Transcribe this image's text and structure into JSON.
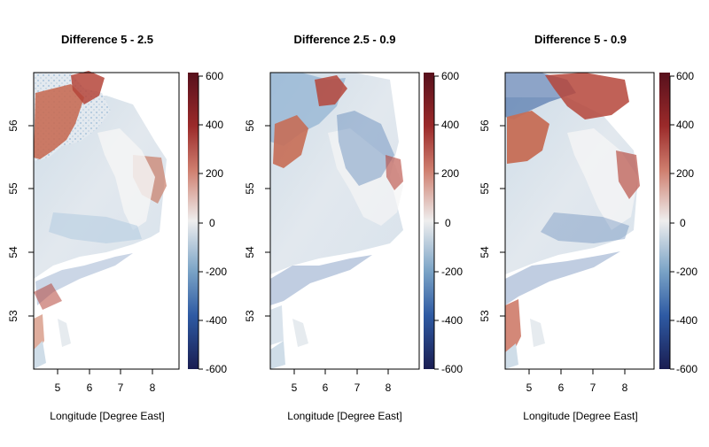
{
  "figure": {
    "xlabel": "Longitude [Degree East]",
    "colorbar_ticks": [
      "600",
      "400",
      "200",
      "0",
      "-200",
      "-400",
      "-600"
    ]
  },
  "chart_data": [
    {
      "type": "heatmap",
      "title": "Difference 5 - 2.5",
      "xlabel": "Longitude [Degree East]",
      "ylabel": "",
      "xlim": [
        4.3,
        9.0
      ],
      "ylim": [
        52.2,
        56.75
      ],
      "x_ticks": [
        "5",
        "6",
        "7",
        "8"
      ],
      "y_ticks": [
        "53",
        "54",
        "55",
        "56"
      ],
      "colorbar": {
        "range": [
          -600,
          600
        ],
        "ticks": [
          600,
          400,
          200,
          0,
          -200,
          -400,
          -600
        ]
      },
      "colors": {
        "low": "#1a1e52",
        "mid": "#eeeeee",
        "high": "#57101c"
      }
    },
    {
      "type": "heatmap",
      "title": "Difference 2.5 - 0.9",
      "xlabel": "Longitude [Degree East]",
      "ylabel": "",
      "xlim": [
        4.3,
        9.0
      ],
      "ylim": [
        52.2,
        56.75
      ],
      "x_ticks": [
        "5",
        "6",
        "7",
        "8"
      ],
      "y_ticks": [
        "53",
        "54",
        "55",
        "56"
      ],
      "colorbar": {
        "range": [
          -600,
          600
        ],
        "ticks": [
          600,
          400,
          200,
          0,
          -200,
          -400,
          -600
        ]
      },
      "colors": {
        "low": "#1a1e52",
        "mid": "#eeeeee",
        "high": "#57101c"
      }
    },
    {
      "type": "heatmap",
      "title": "Difference 5 - 0.9",
      "xlabel": "Longitude [Degree East]",
      "ylabel": "",
      "xlim": [
        4.3,
        9.0
      ],
      "ylim": [
        52.2,
        56.75
      ],
      "x_ticks": [
        "5",
        "6",
        "7",
        "8"
      ],
      "y_ticks": [
        "53",
        "54",
        "55",
        "56"
      ],
      "colorbar": {
        "range": [
          -600,
          600
        ],
        "ticks": [
          600,
          400,
          200,
          0,
          -200,
          -400,
          -600
        ]
      },
      "colors": {
        "low": "#1a1e52",
        "mid": "#eeeeee",
        "high": "#57101c"
      }
    }
  ]
}
